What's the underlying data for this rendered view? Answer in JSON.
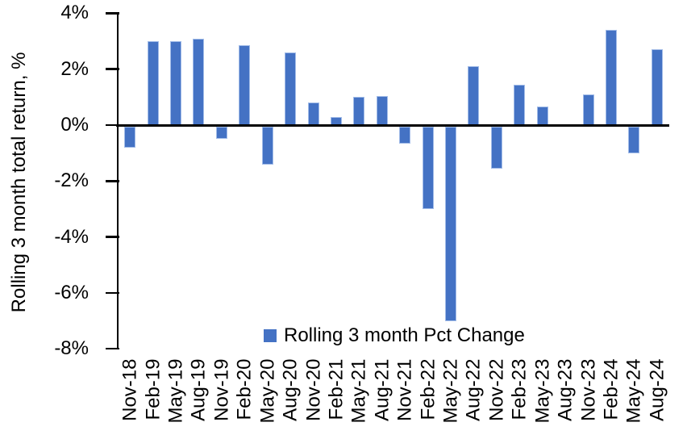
{
  "chart_data": {
    "type": "bar",
    "title": "",
    "xlabel": "",
    "ylabel": "Rolling 3 month total return, %",
    "ylim": [
      -8,
      4
    ],
    "ytick_step": 2,
    "yticks": [
      {
        "value": 4,
        "label": "4%"
      },
      {
        "value": 2,
        "label": "2%"
      },
      {
        "value": 0,
        "label": "0%"
      },
      {
        "value": -2,
        "label": "-2%"
      },
      {
        "value": -4,
        "label": "-4%"
      },
      {
        "value": -6,
        "label": "-6%"
      },
      {
        "value": -8,
        "label": "-8%"
      }
    ],
    "grid": false,
    "legend_position": "bottom-center",
    "bar_color": "#4472C4",
    "bar_border_color": "#A2BCE8",
    "axis_color": "#000000",
    "categories": [
      "Nov-18",
      "Feb-19",
      "May-19",
      "Aug-19",
      "Nov-19",
      "Feb-20",
      "May-20",
      "Aug-20",
      "Nov-20",
      "Feb-21",
      "May-21",
      "Aug-21",
      "Nov-21",
      "Feb-22",
      "May-22",
      "Aug-22",
      "Nov-22",
      "Feb-23",
      "May-23",
      "Aug-23",
      "Nov-23",
      "Feb-24",
      "May-24",
      "Aug-24"
    ],
    "series": [
      {
        "name": "Rolling 3 month Pct Change",
        "values": [
          -0.7,
          3.0,
          3.0,
          3.1,
          -0.4,
          2.85,
          -1.3,
          2.6,
          0.8,
          0.3,
          1.0,
          1.05,
          -0.55,
          -2.9,
          -6.9,
          2.1,
          -1.45,
          1.45,
          0.65,
          0.0,
          1.1,
          3.4,
          -0.9,
          2.7
        ]
      }
    ]
  }
}
